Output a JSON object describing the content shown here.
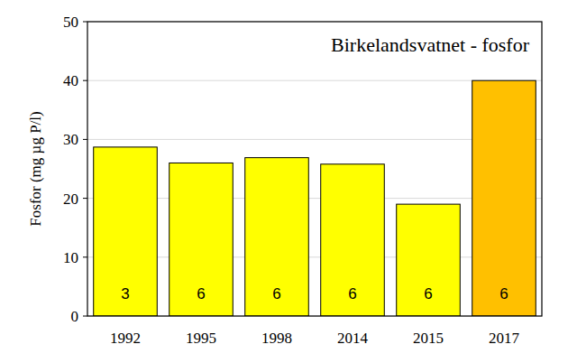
{
  "chart_data": {
    "type": "bar",
    "title": "Birkelandsvatnet - fosfor",
    "y_label": "Fosfor (mg µg P/l)",
    "categories": [
      "1992",
      "1995",
      "1998",
      "2014",
      "2015",
      "2017"
    ],
    "values": [
      28.7,
      26,
      26.9,
      25.8,
      19,
      40
    ],
    "sample_counts": [
      3,
      6,
      6,
      6,
      6,
      6
    ],
    "colors": [
      "#ffff00",
      "#ffff00",
      "#ffff00",
      "#ffff00",
      "#ffff00",
      "#ffc000"
    ],
    "ylim": [
      0,
      50
    ],
    "yticks": [
      0,
      10,
      20,
      30,
      40,
      50
    ],
    "grid": true
  }
}
